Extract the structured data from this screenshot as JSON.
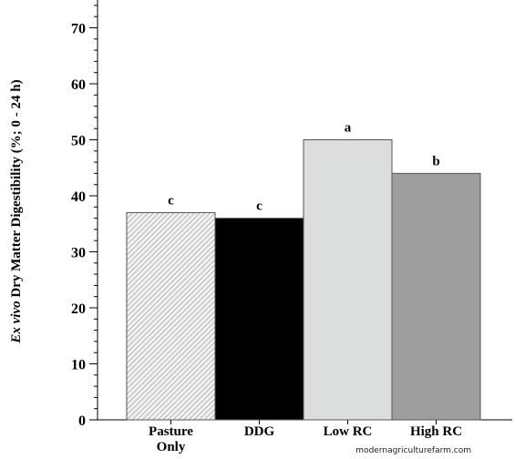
{
  "chart_data": {
    "type": "bar",
    "categories": [
      [
        "Pasture",
        "Only"
      ],
      [
        "DDG"
      ],
      [
        "Low RC"
      ],
      [
        "High RC"
      ]
    ],
    "values": [
      37,
      36,
      50,
      44
    ],
    "letters": [
      "c",
      "c",
      "a",
      "b"
    ],
    "colors": [
      "#e8e8e8",
      "#000000",
      "#dcdddd",
      "#9e9e9e"
    ],
    "hatched": [
      true,
      false,
      false,
      false
    ],
    "ylabel_italic": "Ex vivo",
    "ylabel_rest": " Dry Matter Digestibility (%; 0 - 24 h)",
    "ylim": [
      0,
      75
    ],
    "yticks": [
      0,
      10,
      20,
      30,
      40,
      50,
      60,
      70
    ],
    "minor_step": 2
  },
  "watermark": "modernagriculturefarm.com"
}
